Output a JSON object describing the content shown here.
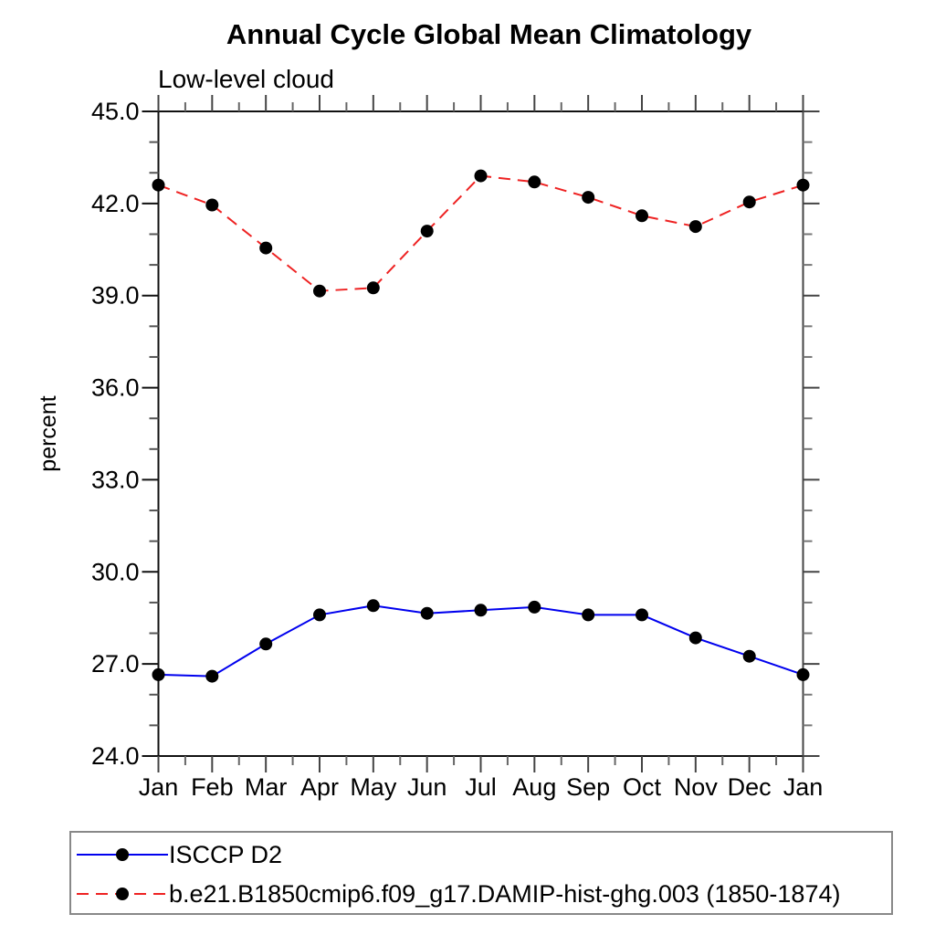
{
  "chart_data": {
    "type": "line",
    "title": "Annual Cycle Global Mean Climatology",
    "subtitle": "Low-level cloud",
    "ylabel": "percent",
    "ylim": [
      24.0,
      45.0
    ],
    "y_major_ticks": [
      24.0,
      27.0,
      30.0,
      33.0,
      36.0,
      39.0,
      42.0,
      45.0
    ],
    "y_tick_labels": [
      "24.0",
      "27.0",
      "30.0",
      "33.0",
      "36.0",
      "39.0",
      "42.0",
      "45.0"
    ],
    "y_minor_step": 1.0,
    "categories": [
      "Jan",
      "Feb",
      "Mar",
      "Apr",
      "May",
      "Jun",
      "Jul",
      "Aug",
      "Sep",
      "Oct",
      "Nov",
      "Dec",
      "Jan"
    ],
    "grid": false,
    "legend_position": "bottom",
    "axis_color": "#111111",
    "marker_color": "#000000",
    "series": [
      {
        "name": "ISCCP D2",
        "color": "#0000ee",
        "style": "solid",
        "marker": "circle",
        "values": [
          26.65,
          26.6,
          27.65,
          28.6,
          28.9,
          28.65,
          28.75,
          28.85,
          28.6,
          28.6,
          27.85,
          27.25,
          26.65
        ]
      },
      {
        "name": "b.e21.B1850cmip6.f09_g17.DAMIP-hist-ghg.003 (1850-1874)",
        "color": "#ee2222",
        "style": "dashed",
        "marker": "circle",
        "values": [
          42.6,
          41.95,
          40.55,
          39.15,
          39.25,
          41.1,
          42.9,
          42.7,
          42.2,
          41.6,
          41.25,
          42.05,
          42.6
        ]
      }
    ]
  }
}
